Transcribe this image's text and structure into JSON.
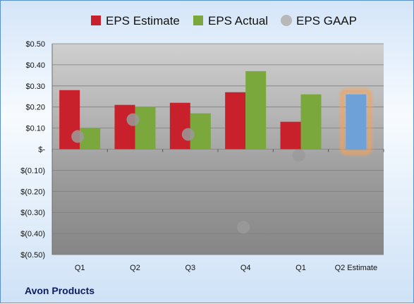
{
  "company_name": "Avon Products",
  "colors": {
    "estimate": "#c9212b",
    "actual": "#7aa83c",
    "gaap": "#9a9a9a",
    "upcoming_estimate": "#6fa1d9",
    "highlight_glow": "#f4a25a"
  },
  "chart_data": {
    "type": "bar",
    "categories": [
      "Q1",
      "Q2",
      "Q3",
      "Q4",
      "Q1",
      "Q2 Estimate"
    ],
    "series": [
      {
        "name": "EPS Estimate",
        "values": [
          0.28,
          0.21,
          0.22,
          0.27,
          0.13,
          null
        ]
      },
      {
        "name": "EPS Actual",
        "values": [
          0.1,
          0.2,
          0.17,
          0.37,
          0.26,
          0.26
        ]
      },
      {
        "name": "EPS GAAP",
        "values": [
          0.06,
          0.14,
          0.07,
          -0.37,
          -0.03,
          null
        ]
      }
    ],
    "ylim": [
      -0.5,
      0.5
    ],
    "yticks": [
      0.5,
      0.4,
      0.3,
      0.2,
      0.1,
      0,
      -0.1,
      -0.2,
      -0.3,
      -0.4,
      -0.5
    ],
    "ytick_labels": [
      "$0.50",
      "$0.40",
      "$0.30",
      "$0.20",
      "$0.10",
      "$-",
      "$(0.10)",
      "$(0.20)",
      "$(0.30)",
      "$(0.40)",
      "$(0.50)"
    ],
    "grid": true,
    "legend_position": "top"
  }
}
